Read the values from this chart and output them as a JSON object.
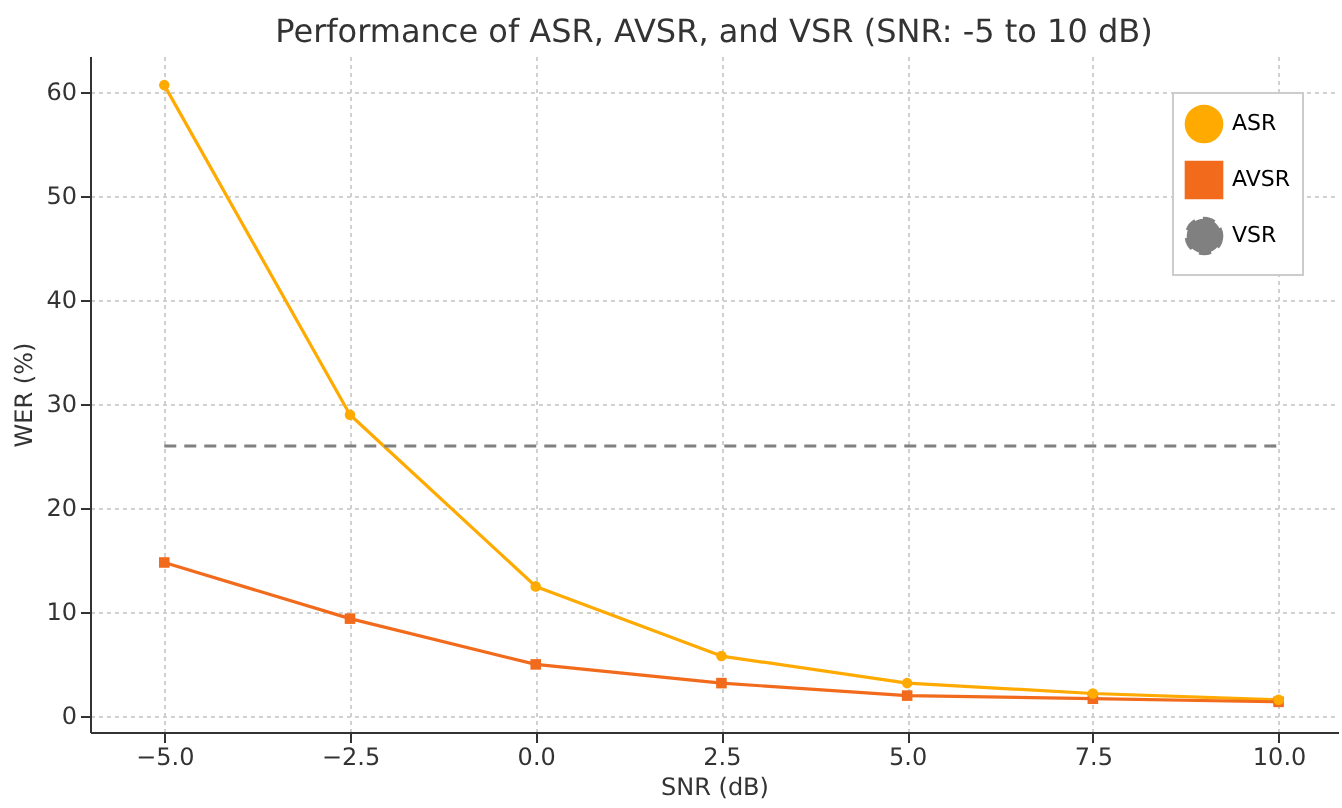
{
  "chart_data": {
    "type": "line",
    "title": "Performance of ASR, AVSR, and VSR (SNR: -5 to 10 dB)",
    "xlabel": "SNR (dB)",
    "ylabel": "WER (%)",
    "x": [
      -5,
      -2.5,
      0,
      2.5,
      5,
      7.5,
      10
    ],
    "series": [
      {
        "name": "ASR",
        "color": "#ffaa00",
        "marker": "circle",
        "line_style": "solid",
        "values": [
          60.6,
          28.9,
          12.4,
          5.7,
          3.1,
          2.1,
          1.5
        ]
      },
      {
        "name": "AVSR",
        "color": "#f26b1d",
        "marker": "square",
        "line_style": "solid",
        "values": [
          14.7,
          9.3,
          4.9,
          3.1,
          1.9,
          1.6,
          1.3
        ]
      },
      {
        "name": "VSR",
        "color": "#808080",
        "marker": "none",
        "line_style": "dashed",
        "x": [
          -5,
          10
        ],
        "values": [
          25.9,
          25.9
        ]
      }
    ],
    "xlim": [
      -6,
      10.8
    ],
    "ylim": [
      -1.6,
      63.4
    ],
    "xticks": [
      {
        "value": -5,
        "label": "−5.0"
      },
      {
        "value": -2.5,
        "label": "−2.5"
      },
      {
        "value": 0,
        "label": "0.0"
      },
      {
        "value": 2.5,
        "label": "2.5"
      },
      {
        "value": 5,
        "label": "5.0"
      },
      {
        "value": 7.5,
        "label": "7.5"
      },
      {
        "value": 10,
        "label": "10.0"
      }
    ],
    "yticks": [
      0,
      10,
      20,
      30,
      40,
      50,
      60
    ],
    "grid": true,
    "legend": "top right"
  }
}
